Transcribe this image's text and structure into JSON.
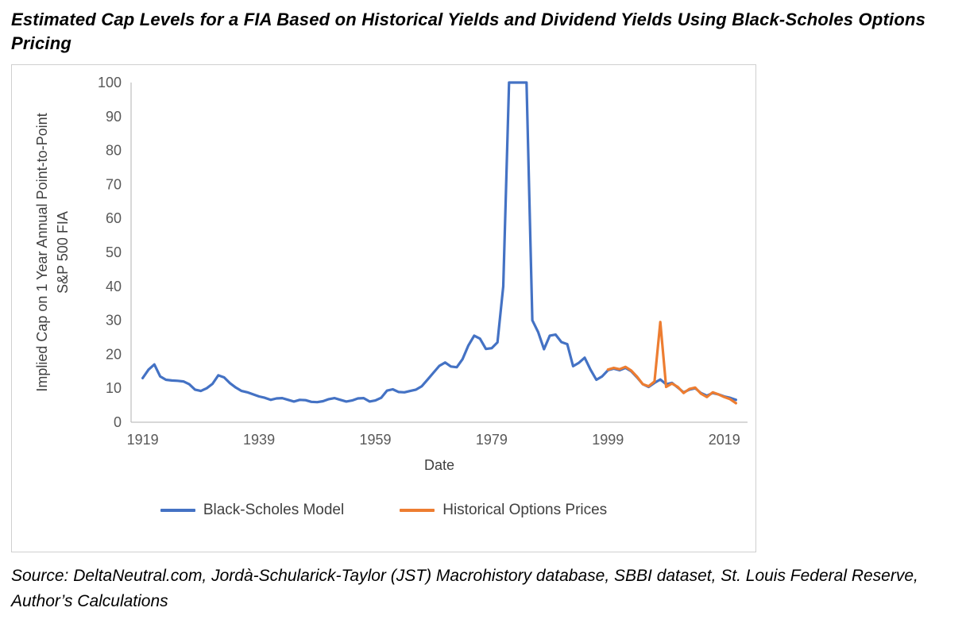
{
  "page": {
    "title": "Estimated Cap Levels for a FIA Based on Historical Yields and Dividend Yields Using Black-Scholes Options Pricing",
    "source_note": "Source: DeltaNeutral.com, Jordà-Schularick-Taylor (JST) Macrohistory database, SBBI dataset, St. Louis Federal Reserve, Author’s Calculations"
  },
  "chart_data": {
    "type": "line",
    "xlabel": "Date",
    "ylabel": "Implied Cap on 1 Year Annual Point-to-Point S&P 500 FIA",
    "ylabel_lines": [
      "Implied Cap on 1 Year Annual Point-to-Point",
      "S&P 500 FIA"
    ],
    "ylim": [
      0,
      100
    ],
    "x_domain": [
      1917,
      2023
    ],
    "y_ticks": [
      0,
      10,
      20,
      30,
      40,
      50,
      60,
      70,
      80,
      90,
      100
    ],
    "x_ticks": [
      1919,
      1939,
      1959,
      1979,
      1999,
      2019
    ],
    "grid": false,
    "legend_position": "bottom",
    "axis_color": "#bfbfbf",
    "tick_color": "#595959",
    "series": [
      {
        "name": "Black-Scholes Model",
        "color": "#4472c4",
        "start_year": 1919,
        "values": [
          13,
          15.5,
          17,
          13.5,
          12.5,
          12.3,
          12.2,
          12,
          11.2,
          9.6,
          9.2,
          10,
          11.3,
          13.8,
          13.2,
          11.5,
          10.2,
          9.2,
          8.8,
          8.2,
          7.6,
          7.2,
          6.6,
          7,
          7.1,
          6.6,
          6.1,
          6.6,
          6.5,
          6,
          5.9,
          6.2,
          6.8,
          7.1,
          6.6,
          6.1,
          6.4,
          7,
          7.1,
          6.1,
          6.4,
          7.2,
          9.3,
          9.7,
          8.9,
          8.8,
          9.2,
          9.6,
          10.6,
          12.6,
          14.6,
          16.6,
          17.6,
          16.4,
          16.2,
          18.6,
          22.6,
          25.5,
          24.6,
          21.6,
          21.8,
          23.5,
          40,
          100,
          100,
          100,
          100,
          30,
          26.5,
          21.5,
          25.5,
          25.8,
          23.6,
          23,
          16.5,
          17.5,
          19,
          15.5,
          12.5,
          13.5,
          15.3,
          15.8,
          15.3,
          16,
          15,
          13.2,
          11.2,
          10.4,
          11.6,
          12.6,
          11.2,
          11.6,
          10.2,
          8.8,
          9.6,
          10,
          8.6,
          7.8,
          8.6,
          8.2,
          7.6,
          7.2,
          6.6
        ]
      },
      {
        "name": "Historical Options Prices",
        "color": "#ed7d31",
        "start_year": 1999,
        "values": [
          15.5,
          16,
          15.6,
          16.3,
          15.2,
          13.4,
          11.2,
          10.6,
          12,
          29.5,
          10.4,
          11.4,
          10.4,
          8.6,
          9.8,
          10.2,
          8.4,
          7.4,
          8.8,
          8.2,
          7.4,
          6.8,
          5.6
        ]
      }
    ]
  }
}
